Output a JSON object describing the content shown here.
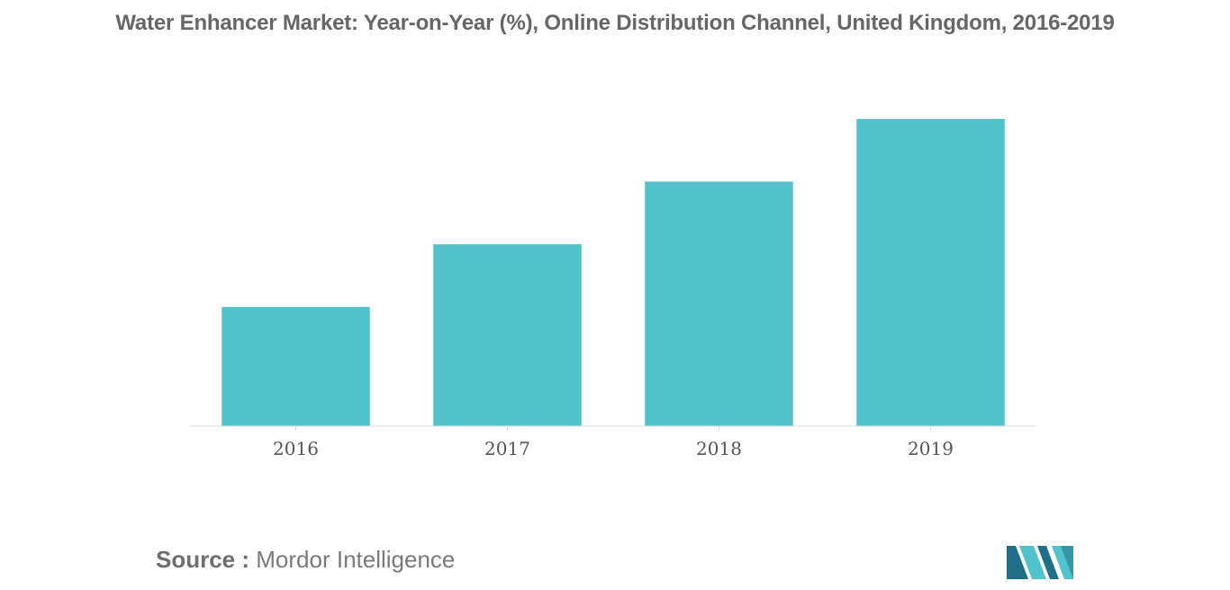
{
  "chart_data": {
    "type": "bar",
    "title": "Water Enhancer Market: Year-on-Year (%), Online Distribution Channel, United Kingdom, 2016-2019",
    "categories": [
      "2016",
      "2017",
      "2018",
      "2019"
    ],
    "values": [
      38,
      58,
      78,
      98
    ],
    "xlabel": "",
    "ylabel": "",
    "ylim": [
      0,
      100
    ],
    "grid": false,
    "legend": "none",
    "bar_color": "#52c3ca",
    "axis_color": "#d9d9d9"
  },
  "source": {
    "label": "Source :",
    "text": "Mordor Intelligence"
  },
  "logo": {
    "icon": "mordor-intelligence-logo-icon",
    "colors": [
      "#1f6f8b",
      "#52c3ca"
    ]
  }
}
